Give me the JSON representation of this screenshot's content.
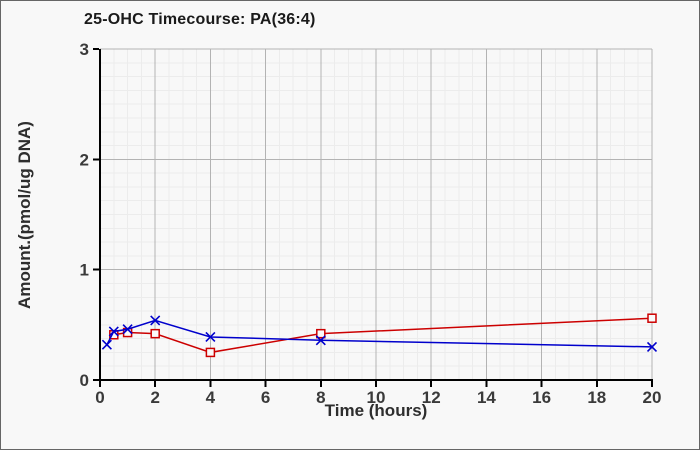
{
  "figure": {
    "background": "#f8f8f8",
    "border_color": "#666666"
  },
  "chart_data": {
    "type": "line",
    "title": "25-OHC Timecourse: PA(36:4)",
    "xlabel": "Time (hours)",
    "ylabel": "Amount.(pmol/ug DNA)",
    "xlim": [
      0,
      20
    ],
    "ylim": [
      0,
      3
    ],
    "x_ticks": [
      0,
      2,
      4,
      6,
      8,
      10,
      12,
      14,
      16,
      18,
      20
    ],
    "y_ticks": [
      0,
      1,
      2,
      3
    ],
    "x_minor_step": 0.5,
    "y_minor_step": 0.125,
    "grid": true,
    "legend_position": "none",
    "series": [
      {
        "id": "red-open-squares",
        "color": "#cc0000",
        "marker": "open-square",
        "x": [
          0.5,
          1,
          2,
          4,
          8,
          20
        ],
        "y": [
          0.41,
          0.43,
          0.42,
          0.25,
          0.42,
          0.56
        ]
      },
      {
        "id": "blue-x-crosses",
        "color": "#0000cc",
        "marker": "x-cross",
        "x": [
          0.25,
          0.5,
          1,
          2,
          4,
          8,
          20
        ],
        "y": [
          0.32,
          0.44,
          0.46,
          0.54,
          0.39,
          0.36,
          0.3
        ]
      }
    ],
    "colors": {
      "grid_minor": "#ececec",
      "grid_major": "#b3b3b3",
      "axis": "#000000",
      "tick_text": "#3a3a3a",
      "title_text": "#1a1a1a"
    }
  }
}
